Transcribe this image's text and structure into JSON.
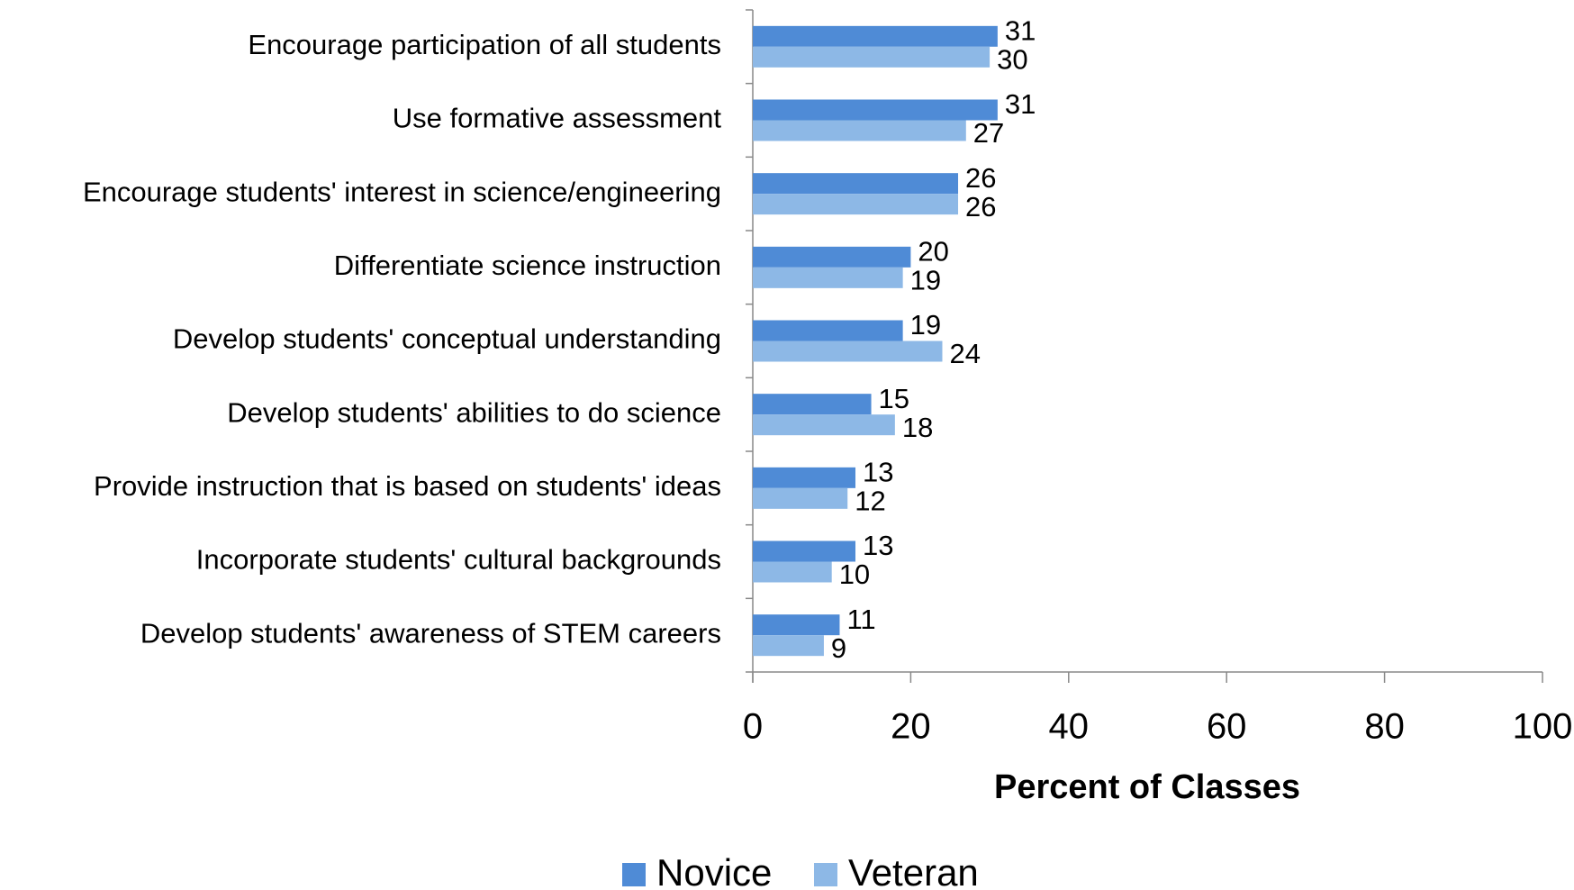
{
  "chart_data": {
    "type": "bar",
    "orientation": "horizontal",
    "x_label": "Percent of Classes",
    "categories": [
      "Encourage participation of all students",
      "Use formative assessment",
      "Encourage students' interest in science/engineering",
      "Differentiate science instruction",
      "Develop students' conceptual understanding",
      "Develop students' abilities to do science",
      "Provide instruction that is based on students' ideas",
      "Incorporate students' cultural backgrounds",
      "Develop students' awareness of STEM careers"
    ],
    "series": [
      {
        "name": "Novice",
        "color": "#4f8bd6",
        "values": [
          31,
          31,
          26,
          20,
          19,
          15,
          13,
          13,
          11
        ]
      },
      {
        "name": "Veteran",
        "color": "#8db8e6",
        "values": [
          30,
          27,
          26,
          19,
          24,
          18,
          12,
          10,
          9
        ]
      }
    ],
    "xlim": [
      0,
      100
    ],
    "xticks": [
      0,
      20,
      40,
      60,
      80,
      100
    ]
  }
}
